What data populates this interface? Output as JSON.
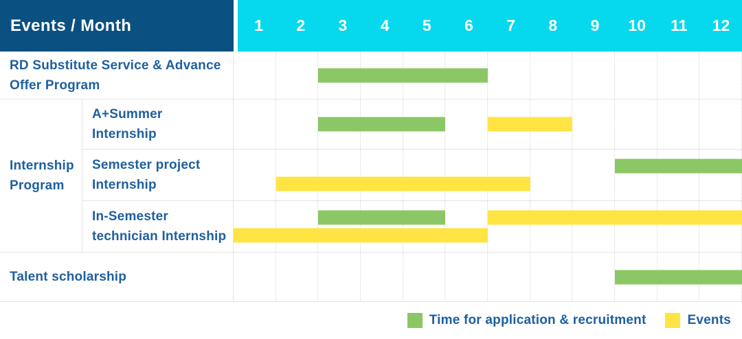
{
  "colors": {
    "header_bg": "#0A5080",
    "months_bg": "#06D9ED",
    "header_text": "#FFFFFF",
    "label_text": "#1E5FA0",
    "grid_line": "#E4E4E4",
    "bar_green": "#8CC765",
    "bar_yellow": "#FFE443"
  },
  "chart_data": {
    "type": "table",
    "subtype": "gantt-schedule",
    "title": "Events / Month",
    "header": "Events / Month",
    "x_categories": [
      "1",
      "2",
      "3",
      "4",
      "5",
      "6",
      "7",
      "8",
      "9",
      "10",
      "11",
      "12"
    ],
    "x_range": [
      1,
      12
    ],
    "grid": "dotted-vertical-month-lines",
    "legend_position": "bottom-right",
    "rows": [
      {
        "group": "",
        "label": "RD Substitute Service & Advance Offer Program",
        "lanes": 1,
        "bars": [
          {
            "series": "green",
            "series_label": "Time for application & recruitment",
            "start_month": 3,
            "end_month": 6,
            "lane": 0
          }
        ]
      },
      {
        "group": "Internship Program",
        "label": "A+Summer Internship",
        "lanes": 1,
        "bars": [
          {
            "series": "green",
            "series_label": "Time for application & recruitment",
            "start_month": 3,
            "end_month": 5,
            "lane": 0
          },
          {
            "series": "yellow",
            "series_label": "Events",
            "start_month": 7,
            "end_month": 8,
            "lane": 0
          }
        ]
      },
      {
        "group": "Internship Program",
        "label": "Semester project Internship",
        "lanes": 2,
        "bars": [
          {
            "series": "green",
            "series_label": "Time for application & recruitment",
            "start_month": 10,
            "end_month": 12,
            "lane": 0
          },
          {
            "series": "yellow",
            "series_label": "Events",
            "start_month": 2,
            "end_month": 7,
            "lane": 1
          }
        ]
      },
      {
        "group": "Internship Program",
        "label": "In-Semester technician Internship",
        "lanes": 2,
        "bars": [
          {
            "series": "green",
            "series_label": "Time for application & recruitment",
            "start_month": 3,
            "end_month": 5,
            "lane": 0
          },
          {
            "series": "yellow",
            "series_label": "Events",
            "start_month": 7,
            "end_month": 12,
            "lane": 0
          },
          {
            "series": "yellow",
            "series_label": "Events",
            "start_month": 1,
            "end_month": 6,
            "lane": 1
          }
        ]
      },
      {
        "group": "",
        "label": "Talent scholarship",
        "lanes": 1,
        "bars": [
          {
            "series": "green",
            "series_label": "Time for application & recruitment",
            "start_month": 10,
            "end_month": 12,
            "lane": 0
          }
        ]
      }
    ],
    "legend": [
      {
        "key": "green",
        "label": "Time for application & recruitment",
        "color": "#8CC765"
      },
      {
        "key": "yellow",
        "label": "Events",
        "color": "#FFE443"
      }
    ]
  }
}
